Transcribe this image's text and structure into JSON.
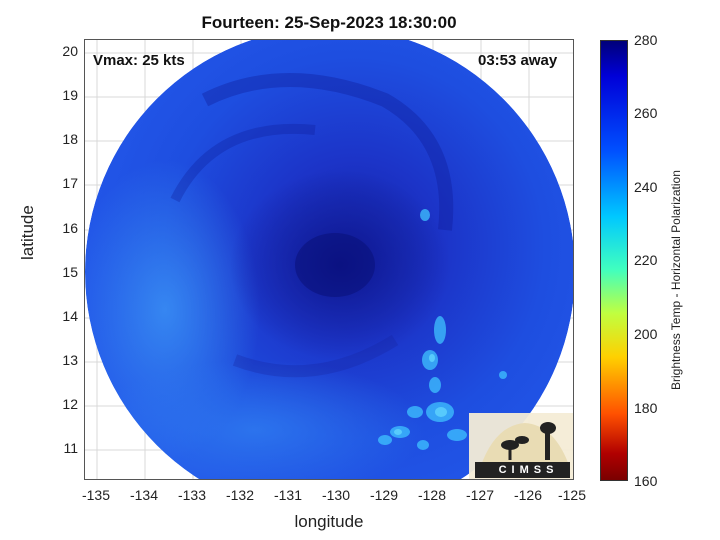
{
  "title": "Fourteen: 25-Sep-2023 18:30:00",
  "vmax": "Vmax: 25 kts",
  "away": "03:53 away",
  "xlabel": "longitude",
  "ylabel": "latitude",
  "xticks": [
    "-135",
    "-134",
    "-133",
    "-132",
    "-131",
    "-130",
    "-129",
    "-128",
    "-127",
    "-126",
    "-125"
  ],
  "yticks": [
    "20",
    "19",
    "18",
    "17",
    "16",
    "15",
    "14",
    "13",
    "12",
    "11"
  ],
  "colorbar": {
    "label": "Brightness Temp - Horizontal Polarization",
    "ticks": [
      "280",
      "260",
      "240",
      "220",
      "200",
      "180",
      "160"
    ],
    "colors": [
      "#00007a",
      "#0000d8",
      "#0050ff",
      "#00c8ff",
      "#40ffbf",
      "#c0ff40",
      "#ffd000",
      "#ff5000",
      "#b00000",
      "#7a0000"
    ]
  },
  "logo": {
    "text": "CIMSS",
    "icon": "cimss-logo-icon"
  }
}
